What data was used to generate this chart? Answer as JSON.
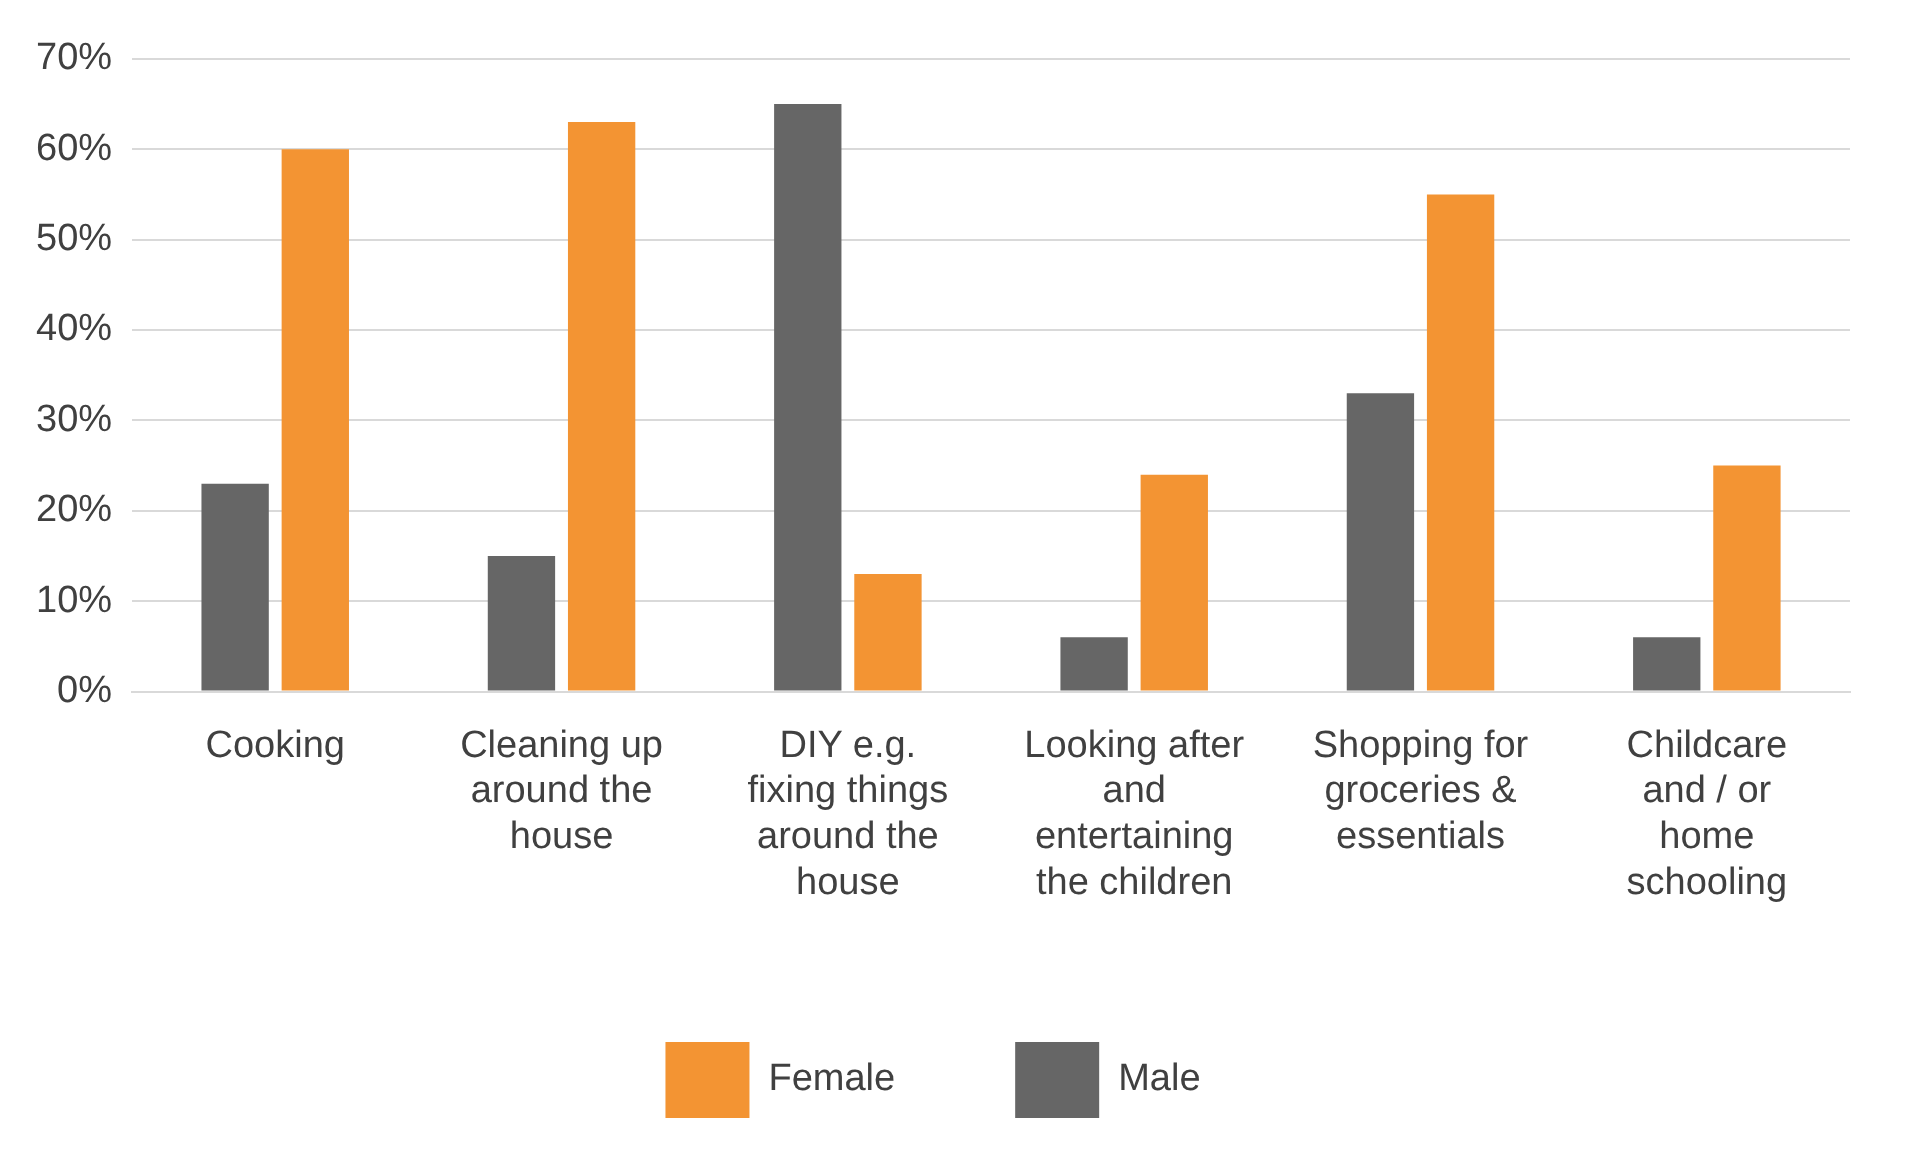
{
  "chart_data": {
    "type": "bar",
    "categories": [
      "Cooking",
      "Cleaning up around the house",
      "DIY e.g. fixing things around the house",
      "Looking after and entertaining the children",
      "Shopping for groceries & essentials",
      "Childcare and / or home schooling"
    ],
    "series": [
      {
        "name": "Male",
        "color": "#666666",
        "values": [
          23,
          15,
          65,
          6,
          33,
          6
        ]
      },
      {
        "name": "Female",
        "color": "#f39433",
        "values": [
          60,
          63,
          13,
          24,
          55,
          25
        ]
      }
    ],
    "ylim": [
      0,
      70
    ],
    "yticks": [
      {
        "value": 0,
        "label": "0%"
      },
      {
        "value": 10,
        "label": "10%"
      },
      {
        "value": 20,
        "label": "20%"
      },
      {
        "value": 30,
        "label": "30%"
      },
      {
        "value": 40,
        "label": "40%"
      },
      {
        "value": 50,
        "label": "50%"
      },
      {
        "value": 60,
        "label": "60%"
      },
      {
        "value": 70,
        "label": "70%"
      }
    ],
    "grid": "y",
    "legend": "bottom"
  }
}
